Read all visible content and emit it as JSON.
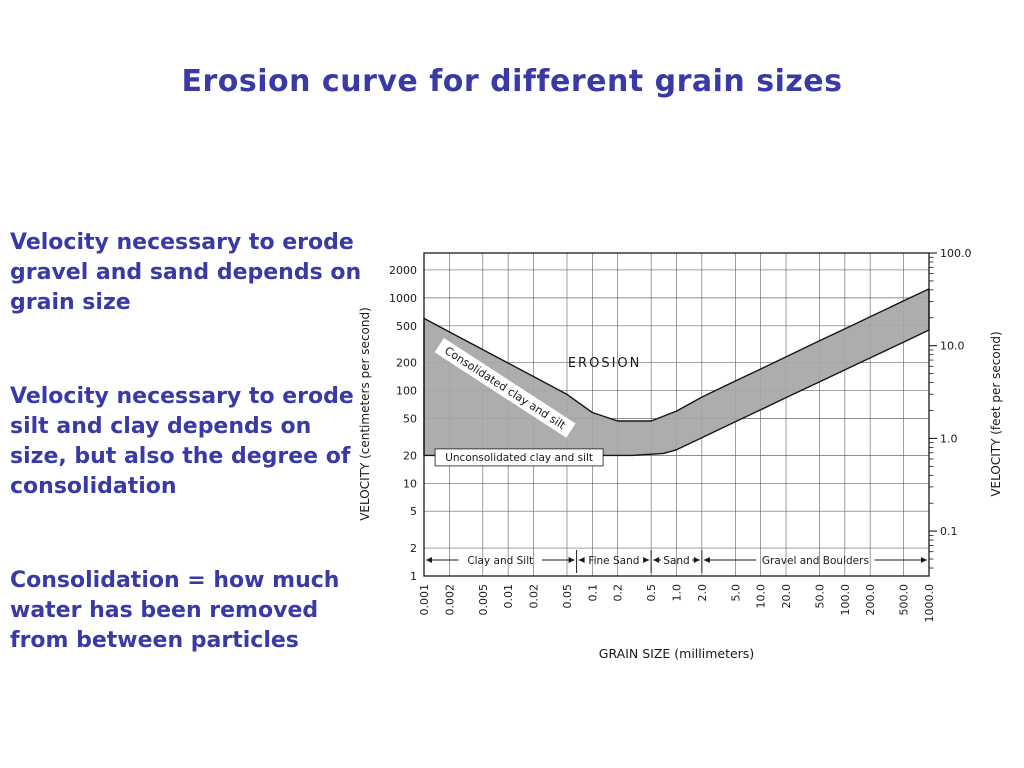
{
  "slide": {
    "title": "Erosion curve for different grain sizes",
    "text_color": "#3a3aa6",
    "bullets": [
      "Velocity necessary to erode\ngravel and sand depends on\ngrain size",
      "Velocity necessary to erode\nsilt and clay depends on\nsize, but also the degree of\nconsolidation",
      "Consolidation = how much\nwater has been removed\nfrom between particles"
    ]
  },
  "chart_data": {
    "type": "area",
    "title": "",
    "xlabel": "GRAIN SIZE (millimeters)",
    "ylabel_left": "VELOCITY (centimeters  per second)",
    "ylabel_right": "VELOCITY (feet per second)",
    "x_scale": "log",
    "y_scale": "log",
    "grid": true,
    "ink": "#1a1a1a",
    "grid_color": "#6a6a6a",
    "xlim": [
      0.001,
      1000
    ],
    "ylim_cm_per_s": [
      1,
      3048
    ],
    "ft_to_cm": 30.48,
    "x_ticks": [
      0.001,
      0.002,
      0.005,
      0.01,
      0.02,
      0.05,
      0.1,
      0.2,
      0.5,
      1.0,
      2.0,
      5.0,
      10.0,
      20.0,
      50.0,
      100.0,
      200.0,
      500.0,
      1000.0
    ],
    "x_tick_labels": [
      "0.001",
      "0.002",
      "0.005",
      "0.01",
      "0.02",
      "0.05",
      "0.1",
      "0.2",
      "0.5",
      "1.0",
      "2.0",
      "5.0",
      "10.0",
      "20.0",
      "50.0",
      "100.0",
      "200.0",
      "500.0",
      "1000.0"
    ],
    "y_ticks_left": [
      1,
      2,
      5,
      10,
      20,
      50,
      100,
      200,
      500,
      1000,
      2000
    ],
    "y_tick_labels_left": [
      "1",
      "2",
      "5",
      "10",
      "20",
      "50",
      "100",
      "200",
      "500",
      "1000",
      "2000"
    ],
    "y_ticks_right_ft": [
      0.1,
      1.0,
      10.0,
      100.0
    ],
    "y_tick_labels_right": [
      "0.1",
      "1.0",
      "10.0",
      "100.0"
    ],
    "band": {
      "fill": "#a6a6a6",
      "stroke": "#161616",
      "upper": [
        [
          0.001,
          600
        ],
        [
          0.002,
          430
        ],
        [
          0.005,
          277
        ],
        [
          0.01,
          198
        ],
        [
          0.02,
          142
        ],
        [
          0.05,
          91
        ],
        [
          0.1,
          58
        ],
        [
          0.2,
          47
        ],
        [
          0.5,
          47
        ],
        [
          1,
          60
        ],
        [
          2,
          85
        ],
        [
          5,
          127
        ],
        [
          10,
          171
        ],
        [
          20,
          231
        ],
        [
          50,
          344
        ],
        [
          100,
          463
        ],
        [
          200,
          625
        ],
        [
          500,
          929
        ],
        [
          1000,
          1250
        ]
      ],
      "lower": [
        [
          0.001,
          20
        ],
        [
          0.3,
          20
        ],
        [
          0.7,
          21
        ],
        [
          1,
          23
        ],
        [
          2,
          31
        ],
        [
          5,
          46
        ],
        [
          10,
          62
        ],
        [
          20,
          84
        ],
        [
          50,
          124
        ],
        [
          100,
          167
        ],
        [
          200,
          225
        ],
        [
          500,
          333
        ],
        [
          1000,
          450
        ]
      ]
    },
    "annotations": [
      {
        "label": "EROSION",
        "x": 0.14,
        "v": 198,
        "rotate": 0,
        "style": "plain",
        "size": 13,
        "spacing": 2
      },
      {
        "label": "Consolidated clay and silt",
        "x": 0.0092,
        "v": 107,
        "rotate": 33,
        "style": "boxed",
        "size": 11
      },
      {
        "label": "Unconsolidated clay and silt",
        "x": 0.0135,
        "v": 19,
        "rotate": 0,
        "style": "boxed-border",
        "size": 10.5
      }
    ],
    "grain_classes": [
      {
        "label": "Clay and Silt",
        "from": 0.001,
        "to": 0.065
      },
      {
        "label": "Fine Sand",
        "from": 0.065,
        "to": 0.5
      },
      {
        "label": "Sand",
        "from": 0.5,
        "to": 2.0
      },
      {
        "label": "Gravel and Boulders",
        "from": 2.0,
        "to": 1000
      }
    ]
  }
}
